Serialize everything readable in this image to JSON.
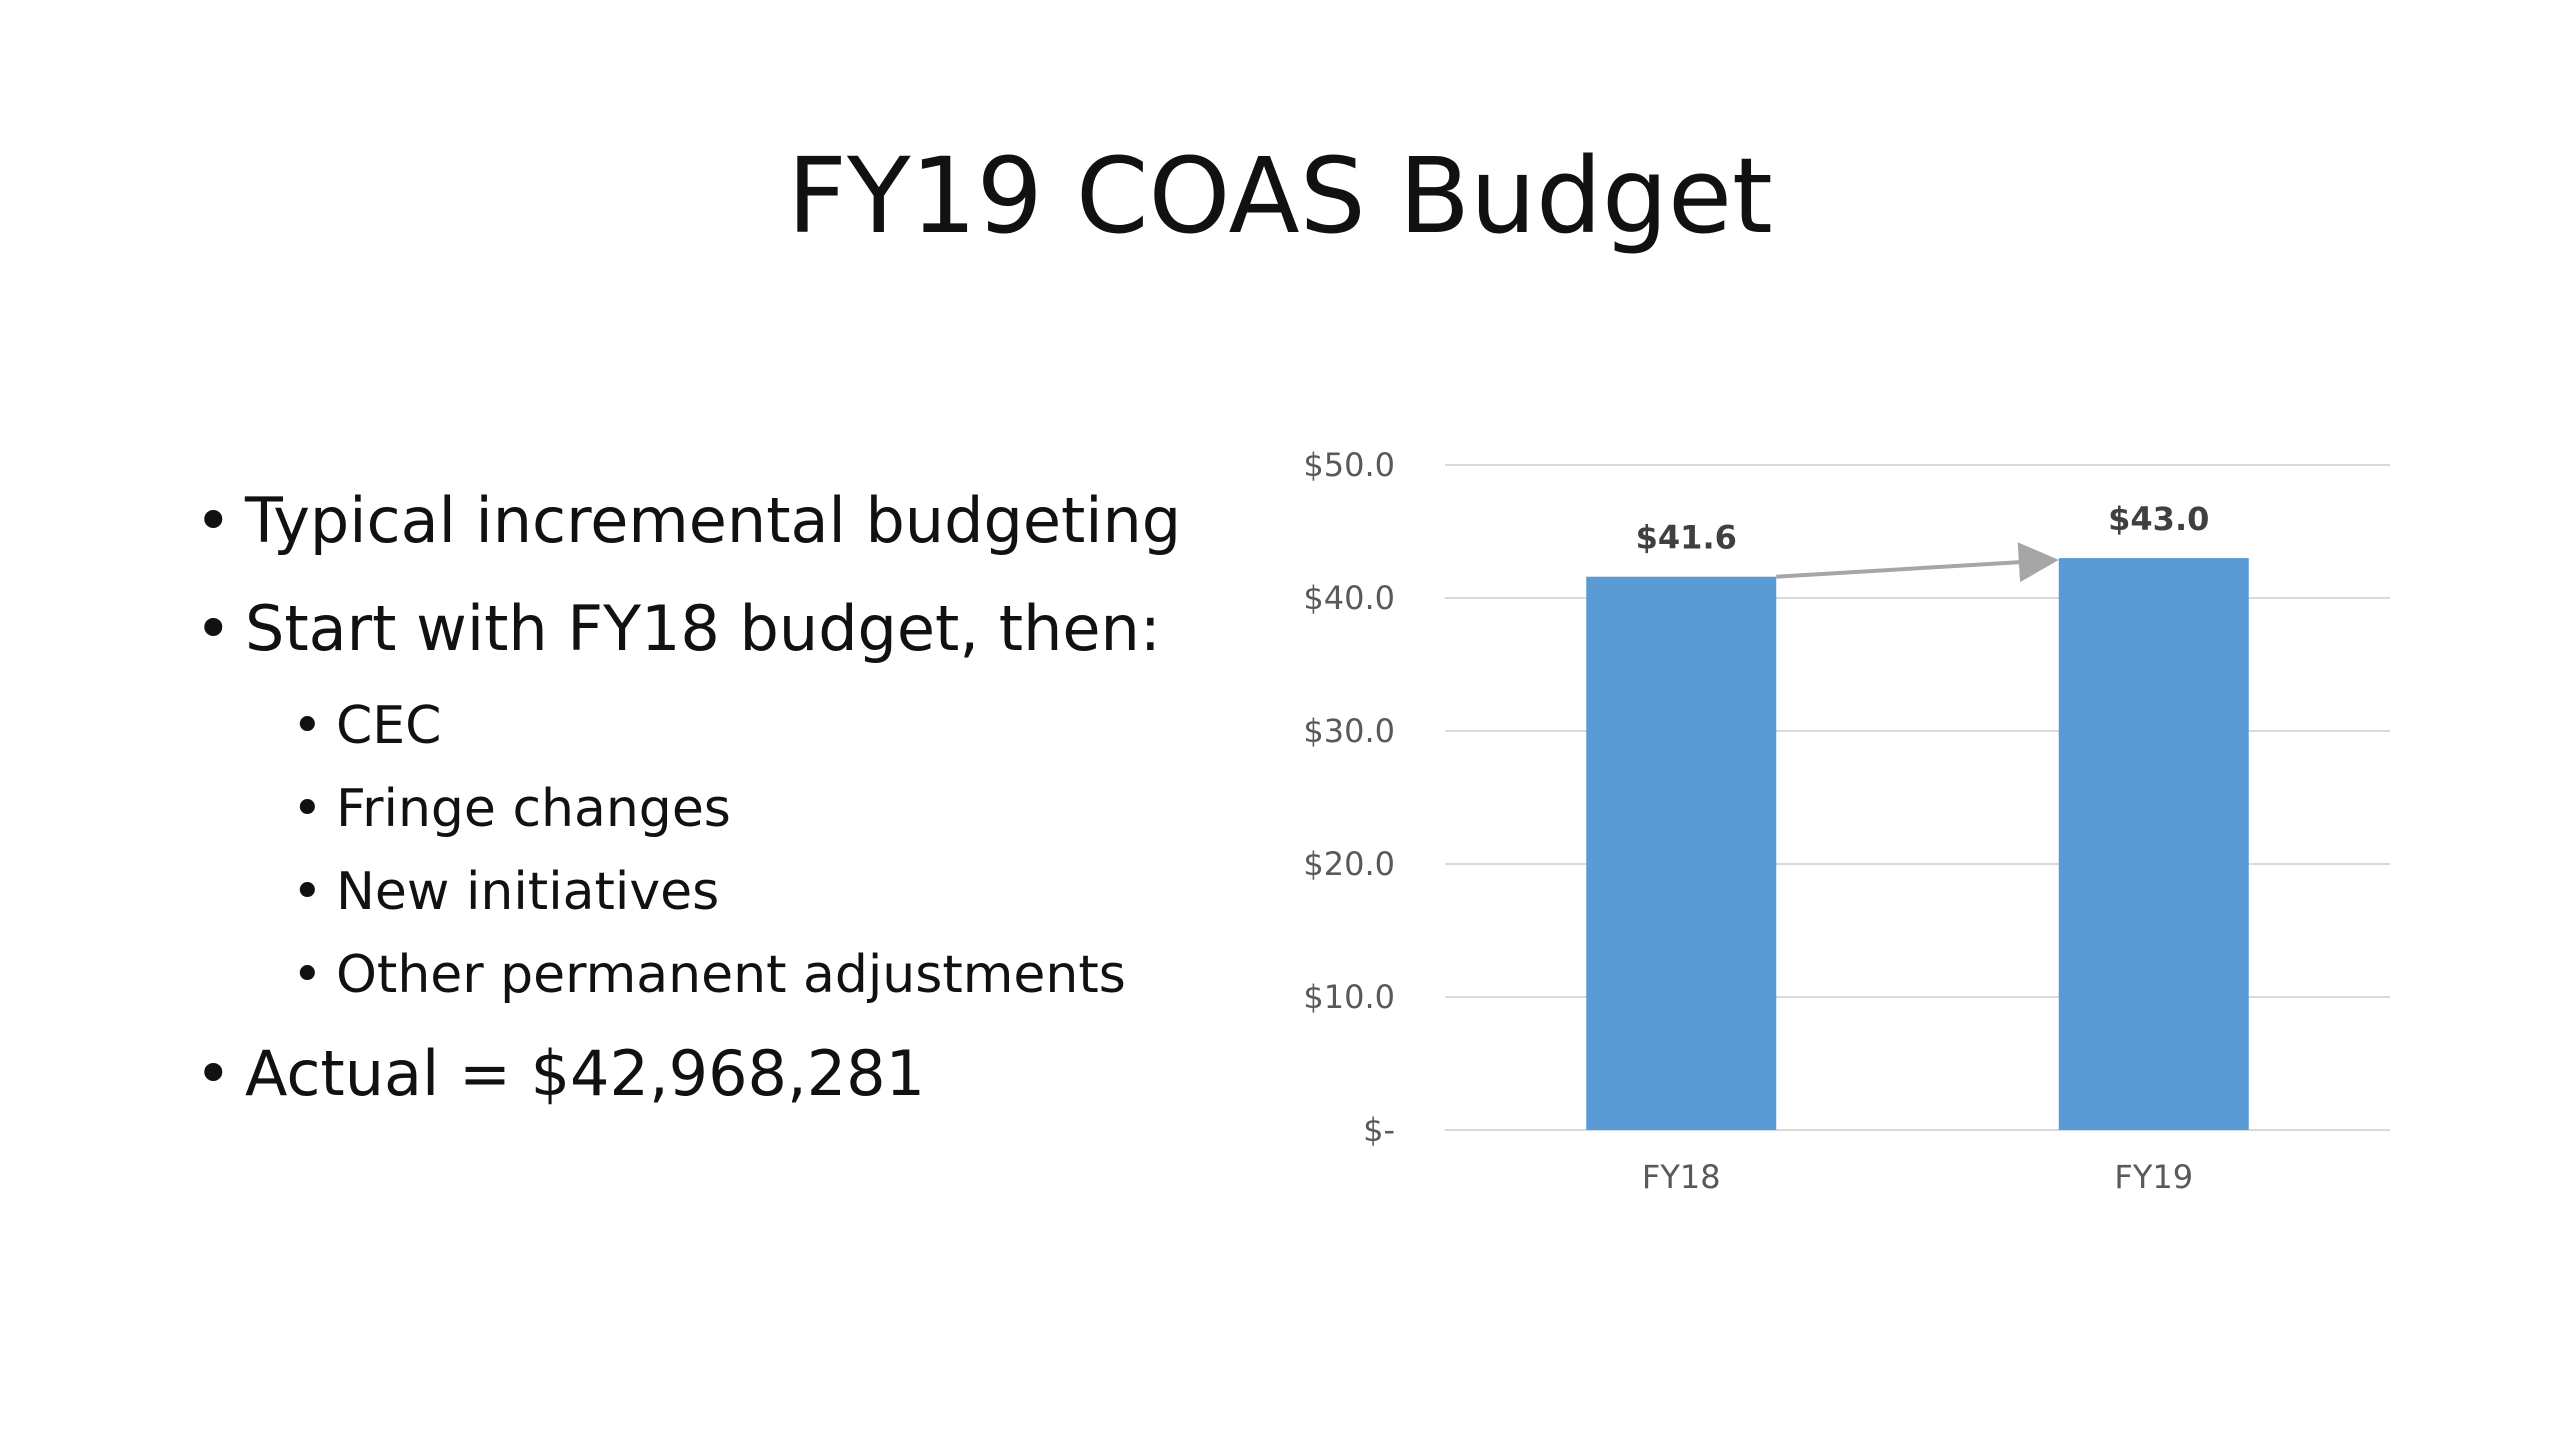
{
  "slide": {
    "title": "FY19 COAS Budget",
    "bullets": [
      {
        "text": "Typical incremental budgeting"
      },
      {
        "text": "Start with FY18 budget, then:"
      },
      {
        "text": "Actual = $42,968,281"
      }
    ],
    "sub_bullets": [
      {
        "text": "CEC"
      },
      {
        "text": "Fringe changes"
      },
      {
        "text": "New initiatives"
      },
      {
        "text": "Other permanent adjustments"
      }
    ]
  },
  "chart_data": {
    "type": "bar",
    "title": "",
    "xlabel": "",
    "ylabel": "",
    "categories": [
      "FY18",
      "FY19"
    ],
    "values": [
      41.6,
      43.0
    ],
    "data_labels": [
      "$41.6",
      "$43.0"
    ],
    "y_ticks": [
      0,
      10,
      20,
      30,
      40,
      50
    ],
    "y_tick_labels": [
      "$-",
      "$10.0",
      "$20.0",
      "$30.0",
      "$40.0",
      "$50.0"
    ],
    "ylim": [
      0,
      50
    ],
    "grid": true,
    "legend": "none",
    "bar_color": "#5B9BD5",
    "gridline_color": "#D9D9D9",
    "arrow_color": "#A6A6A6",
    "annotation": "arrow from FY18 bar top to FY19 bar top"
  }
}
